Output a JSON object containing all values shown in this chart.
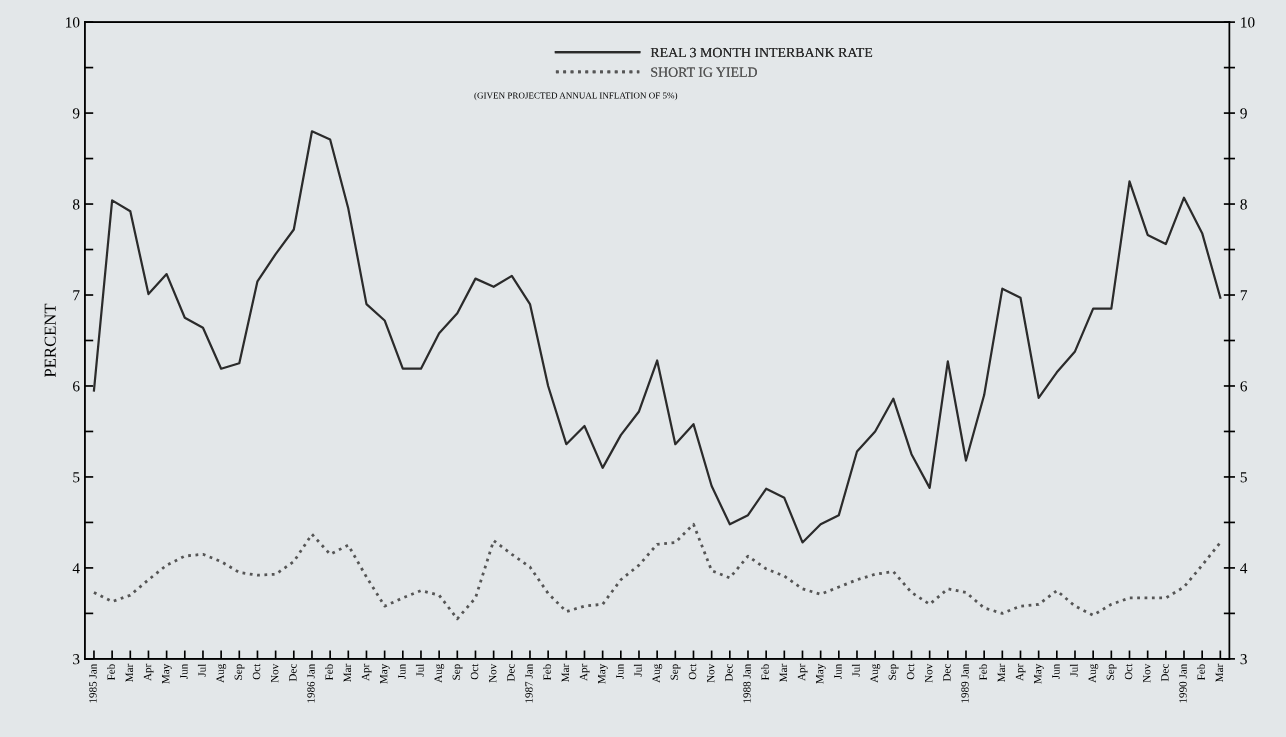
{
  "chart_data": {
    "type": "line",
    "ylabel": "PERCENT",
    "categories": [
      "1985 Jan",
      "Feb",
      "Mar",
      "Apr",
      "May",
      "Jun",
      "Jul",
      "Aug",
      "Sep",
      "Oct",
      "Nov",
      "Dec",
      "1986 Jan",
      "Feb",
      "Mar",
      "Apr",
      "May",
      "Jun",
      "Jul",
      "Aug",
      "Sep",
      "Oct",
      "Nov",
      "Dec",
      "1987 Jan",
      "Feb",
      "Mar",
      "Apr",
      "May",
      "Jun",
      "Jul",
      "Aug",
      "Sep",
      "Oct",
      "Nov",
      "Dec",
      "1988 Jan",
      "Feb",
      "Mar",
      "Apr",
      "May",
      "Jun",
      "Jul",
      "Aug",
      "Sep",
      "Oct",
      "Nov",
      "Dec",
      "1989 Jan",
      "Feb",
      "Mar",
      "Apr",
      "May",
      "Jun",
      "Jul",
      "Aug",
      "Sep",
      "Oct",
      "Nov",
      "Dec",
      "1990 Jan",
      "Feb",
      "Mar"
    ],
    "series": [
      {
        "name": "REAL 3 MONTH INTERBANK RATE",
        "color": "#2b2b2b",
        "line_style": "solid",
        "values": [
          5.95,
          8.04,
          7.92,
          7.01,
          7.23,
          6.75,
          6.64,
          6.19,
          6.25,
          7.15,
          7.45,
          7.72,
          8.8,
          8.71,
          7.95,
          6.9,
          6.72,
          6.19,
          6.19,
          6.58,
          6.8,
          7.18,
          7.09,
          7.21,
          6.9,
          6.0,
          5.36,
          5.56,
          5.1,
          5.46,
          5.72,
          6.28,
          5.36,
          5.58,
          4.9,
          4.48,
          4.58,
          4.87,
          4.77,
          4.28,
          4.48,
          4.58,
          5.28,
          5.5,
          5.86,
          5.25,
          4.88,
          6.27,
          5.18,
          5.9,
          7.07,
          6.97,
          5.87,
          6.15,
          6.38,
          6.85,
          6.85,
          8.25,
          7.66,
          7.56,
          8.07,
          7.68,
          6.97
        ]
      },
      {
        "name": "SHORT IG YIELD",
        "color": "#555555",
        "line_style": "dotted",
        "values": [
          3.73,
          3.63,
          3.7,
          3.87,
          4.03,
          4.13,
          4.15,
          4.07,
          3.95,
          3.92,
          3.93,
          4.07,
          4.37,
          4.15,
          4.25,
          3.9,
          3.58,
          3.67,
          3.75,
          3.7,
          3.44,
          3.67,
          4.3,
          4.15,
          4.01,
          3.72,
          3.52,
          3.58,
          3.6,
          3.87,
          4.03,
          4.26,
          4.28,
          4.48,
          3.97,
          3.89,
          4.13,
          3.99,
          3.91,
          3.77,
          3.71,
          3.79,
          3.87,
          3.93,
          3.96,
          3.73,
          3.6,
          3.77,
          3.73,
          3.56,
          3.5,
          3.58,
          3.6,
          3.75,
          3.58,
          3.48,
          3.6,
          3.67,
          3.67,
          3.67,
          3.79,
          4.03,
          4.28
        ]
      }
    ],
    "annotations": [
      "(GIVEN PROJECTED ANNUAL INFLATION OF 5%)"
    ],
    "ylim": [
      3,
      10
    ],
    "yticks": [
      3,
      {
        "value": 3.5,
        "label": null
      },
      4,
      {
        "value": 4.5,
        "label": null
      },
      5,
      {
        "value": 5.5,
        "label": null
      },
      6,
      {
        "value": 6.5,
        "label": null
      },
      7,
      {
        "value": 7.5,
        "label": null
      },
      8,
      {
        "value": 8.5,
        "label": null
      },
      9,
      {
        "value": 9.5,
        "label": null
      },
      10
    ],
    "y2lim": [
      3,
      10
    ],
    "y2ticks": [
      3,
      {
        "value": 3.5,
        "label": null
      },
      4,
      {
        "value": 4.5,
        "label": null
      },
      5,
      {
        "value": 5.5,
        "label": null
      },
      6,
      {
        "value": 6.5,
        "label": null
      },
      7,
      {
        "value": 7.5,
        "label": null
      },
      8,
      {
        "value": 8.5,
        "label": null
      },
      9,
      {
        "value": 9.5,
        "label": null
      },
      10
    ],
    "grid": false,
    "legend": "top",
    "marker": "none"
  }
}
